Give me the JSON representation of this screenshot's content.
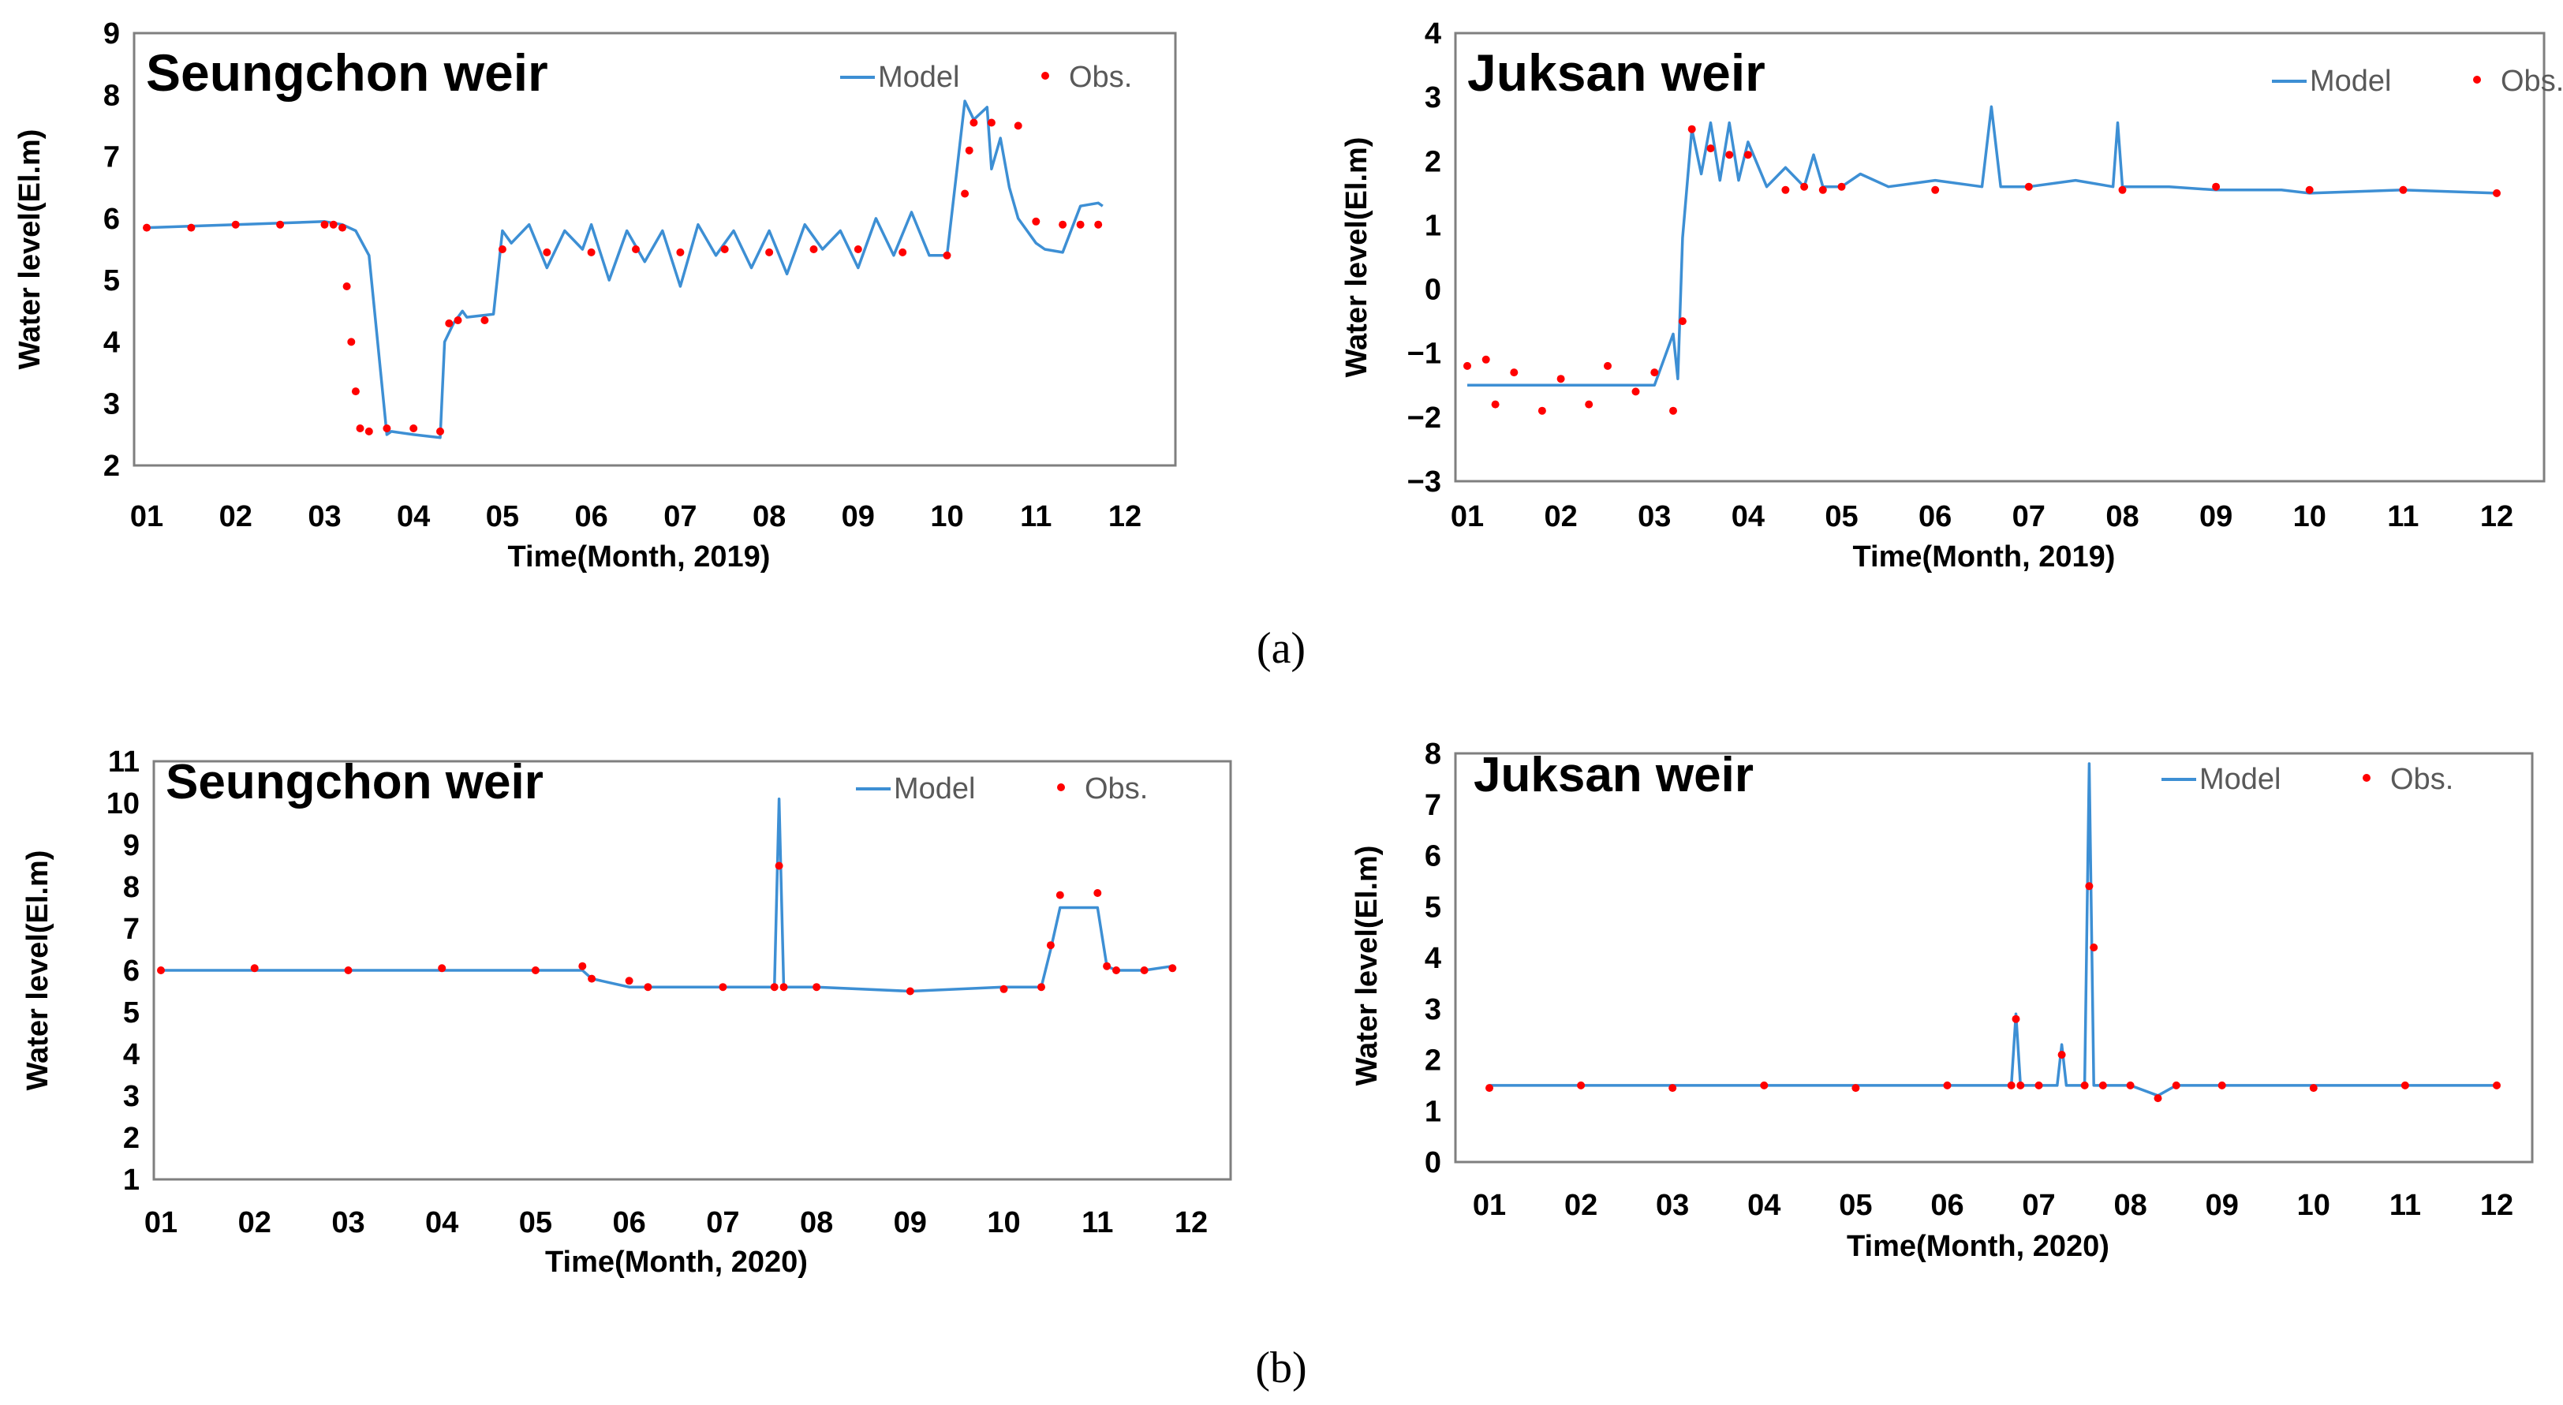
{
  "figure": {
    "caption_a": "(a)",
    "caption_b": "(b)"
  },
  "colors": {
    "model": "#3d8fd4",
    "obs": "#ff0000",
    "frame": "#7f7f7f"
  },
  "chart_data": [
    {
      "id": "a-left",
      "type": "line",
      "title": "Seungchon weir",
      "xlabel": "Time(Month, 2019)",
      "ylabel": "Water level(El.m)",
      "ylim": [
        2,
        9
      ],
      "yticks": [
        "2",
        "3",
        "4",
        "5",
        "6",
        "7",
        "8",
        "9"
      ],
      "xticks": [
        "01",
        "02",
        "03",
        "04",
        "05",
        "06",
        "07",
        "08",
        "09",
        "10",
        "11",
        "12"
      ],
      "legend": [
        "Model",
        "Obs."
      ],
      "series": [
        {
          "name": "Model",
          "x": [
            0.0,
            1.0,
            2.0,
            2.2,
            2.35,
            2.5,
            2.7,
            2.75,
            3.0,
            3.3,
            3.35,
            3.45,
            3.55,
            3.6,
            3.9,
            4.0,
            4.1,
            4.3,
            4.5,
            4.7,
            4.9,
            5.0,
            5.2,
            5.4,
            5.6,
            5.8,
            6.0,
            6.2,
            6.4,
            6.6,
            6.8,
            7.0,
            7.2,
            7.4,
            7.6,
            7.8,
            8.0,
            8.2,
            8.4,
            8.6,
            8.8,
            9.0,
            9.2,
            9.3,
            9.45,
            9.5,
            9.6,
            9.7,
            9.8,
            9.9,
            10.0,
            10.1,
            10.3,
            10.5,
            10.7,
            10.75
          ],
          "y": [
            5.85,
            5.9,
            5.95,
            5.9,
            5.8,
            5.4,
            2.5,
            2.55,
            2.5,
            2.45,
            4.0,
            4.3,
            4.5,
            4.4,
            4.45,
            5.8,
            5.6,
            5.9,
            5.2,
            5.8,
            5.5,
            5.9,
            5.0,
            5.8,
            5.3,
            5.8,
            4.9,
            5.9,
            5.4,
            5.8,
            5.2,
            5.8,
            5.1,
            5.9,
            5.5,
            5.8,
            5.2,
            6.0,
            5.4,
            6.1,
            5.4,
            5.4,
            7.9,
            7.6,
            7.8,
            6.8,
            7.3,
            6.5,
            6.0,
            5.8,
            5.6,
            5.5,
            5.45,
            6.2,
            6.25,
            6.2
          ]
        },
        {
          "name": "Obs.",
          "x": [
            0.0,
            0.5,
            1.0,
            1.5,
            2.0,
            2.1,
            2.2,
            2.25,
            2.3,
            2.35,
            2.4,
            2.5,
            2.7,
            3.0,
            3.3,
            3.4,
            3.5,
            3.8,
            4.0,
            4.5,
            5.0,
            5.5,
            6.0,
            6.5,
            7.0,
            7.5,
            8.0,
            8.5,
            9.0,
            9.2,
            9.25,
            9.3,
            9.5,
            9.8,
            10.0,
            10.3,
            10.5,
            10.7
          ],
          "y": [
            5.85,
            5.85,
            5.9,
            5.9,
            5.9,
            5.9,
            5.85,
            4.9,
            4.0,
            3.2,
            2.6,
            2.55,
            2.6,
            2.6,
            2.55,
            4.3,
            4.35,
            4.35,
            5.5,
            5.45,
            5.45,
            5.5,
            5.45,
            5.5,
            5.45,
            5.5,
            5.5,
            5.45,
            5.4,
            6.4,
            7.1,
            7.55,
            7.55,
            7.5,
            5.95,
            5.9,
            5.9,
            5.9
          ]
        }
      ]
    },
    {
      "id": "a-right",
      "type": "line",
      "title": "Juksan weir",
      "xlabel": "Time(Month, 2019)",
      "ylabel": "Water level(El.m)",
      "ylim": [
        -3,
        4
      ],
      "yticks": [
        "−3",
        "−2",
        "−1",
        "0",
        "1",
        "2",
        "3",
        "4"
      ],
      "xticks": [
        "01",
        "02",
        "03",
        "04",
        "05",
        "06",
        "07",
        "08",
        "09",
        "10",
        "11",
        "12"
      ],
      "legend": [
        "Model",
        "Obs."
      ],
      "series": [
        {
          "name": "Model",
          "x": [
            0.0,
            1.0,
            2.0,
            2.2,
            2.25,
            2.3,
            2.4,
            2.5,
            2.6,
            2.7,
            2.8,
            2.9,
            3.0,
            3.2,
            3.4,
            3.6,
            3.7,
            3.8,
            4.0,
            4.2,
            4.5,
            5.0,
            5.5,
            5.6,
            5.7,
            6.0,
            6.5,
            6.9,
            6.95,
            7.0,
            7.5,
            8.0,
            8.1,
            8.2,
            8.6,
            8.7,
            9.0,
            10.0,
            11.0
          ],
          "y": [
            -1.5,
            -1.5,
            -1.5,
            -0.7,
            -1.4,
            0.8,
            2.5,
            1.8,
            2.6,
            1.7,
            2.6,
            1.7,
            2.3,
            1.6,
            1.9,
            1.6,
            2.1,
            1.6,
            1.6,
            1.8,
            1.6,
            1.7,
            1.6,
            2.85,
            1.6,
            1.6,
            1.7,
            1.6,
            2.6,
            1.6,
            1.6,
            1.55,
            1.55,
            1.55,
            1.55,
            1.55,
            1.5,
            1.55,
            1.5
          ]
        },
        {
          "name": "Obs.",
          "x": [
            0.0,
            0.2,
            0.3,
            0.5,
            0.8,
            1.0,
            1.3,
            1.5,
            1.8,
            2.0,
            2.2,
            2.3,
            2.4,
            2.6,
            2.8,
            3.0,
            3.4,
            3.6,
            3.8,
            4.0,
            5.0,
            6.0,
            7.0,
            8.0,
            9.0,
            10.0,
            11.0
          ],
          "y": [
            -1.2,
            -1.1,
            -1.8,
            -1.3,
            -1.9,
            -1.4,
            -1.8,
            -1.2,
            -1.6,
            -1.3,
            -1.9,
            -0.5,
            2.5,
            2.2,
            2.1,
            2.1,
            1.55,
            1.6,
            1.55,
            1.6,
            1.55,
            1.6,
            1.55,
            1.6,
            1.55,
            1.55,
            1.5
          ]
        }
      ]
    },
    {
      "id": "b-left",
      "type": "line",
      "title": "Seungchon weir",
      "xlabel": "Time(Month, 2020)",
      "ylabel": "Water level(El.m)",
      "ylim": [
        1,
        11
      ],
      "yticks": [
        "1",
        "2",
        "3",
        "4",
        "5",
        "6",
        "7",
        "8",
        "9",
        "10",
        "11"
      ],
      "xticks": [
        "01",
        "02",
        "03",
        "04",
        "05",
        "06",
        "07",
        "08",
        "09",
        "10",
        "11",
        "12"
      ],
      "legend": [
        "Model",
        "Obs."
      ],
      "series": [
        {
          "name": "Model",
          "x": [
            0.0,
            1.0,
            2.0,
            3.0,
            4.0,
            4.5,
            4.6,
            4.8,
            5.0,
            5.2,
            6.0,
            6.55,
            6.6,
            6.65,
            7.0,
            8.0,
            9.0,
            9.4,
            9.5,
            9.6,
            10.0,
            10.1,
            10.2,
            10.5,
            10.8
          ],
          "y": [
            6.0,
            6.0,
            6.0,
            6.0,
            6.0,
            6.0,
            5.8,
            5.7,
            5.6,
            5.6,
            5.6,
            5.6,
            10.1,
            5.6,
            5.6,
            5.5,
            5.6,
            5.6,
            6.5,
            7.5,
            7.5,
            6.1,
            6.0,
            6.0,
            6.1
          ]
        },
        {
          "name": "Obs.",
          "x": [
            0.0,
            1.0,
            2.0,
            3.0,
            4.0,
            4.5,
            4.6,
            5.0,
            5.2,
            6.0,
            6.55,
            6.6,
            6.65,
            7.0,
            8.0,
            9.0,
            9.4,
            9.5,
            9.6,
            10.0,
            10.1,
            10.2,
            10.5,
            10.8
          ],
          "y": [
            6.0,
            6.05,
            6.0,
            6.05,
            6.0,
            6.1,
            5.8,
            5.75,
            5.6,
            5.6,
            5.6,
            8.5,
            5.6,
            5.6,
            5.5,
            5.55,
            5.6,
            6.6,
            7.8,
            7.85,
            6.1,
            6.0,
            6.0,
            6.05
          ]
        }
      ]
    },
    {
      "id": "b-right",
      "type": "line",
      "title": "Juksan weir",
      "xlabel": "Time(Month, 2020)",
      "ylabel": "Water level(El.m)",
      "ylim": [
        0,
        8
      ],
      "yticks": [
        "0",
        "1",
        "2",
        "3",
        "4",
        "5",
        "6",
        "7",
        "8"
      ],
      "xticks": [
        "01",
        "02",
        "03",
        "04",
        "05",
        "06",
        "07",
        "08",
        "09",
        "10",
        "11",
        "12"
      ],
      "legend": [
        "Model",
        "Obs."
      ],
      "series": [
        {
          "name": "Model",
          "x": [
            0.0,
            1.0,
            2.0,
            3.0,
            4.0,
            5.0,
            5.7,
            5.75,
            5.8,
            6.0,
            6.2,
            6.25,
            6.3,
            6.5,
            6.55,
            6.6,
            6.7,
            7.0,
            7.3,
            7.5,
            8.0,
            9.0,
            10.0,
            11.0
          ],
          "y": [
            1.5,
            1.5,
            1.5,
            1.5,
            1.5,
            1.5,
            1.5,
            2.9,
            1.5,
            1.5,
            1.5,
            2.3,
            1.5,
            1.5,
            7.8,
            1.5,
            1.5,
            1.5,
            1.3,
            1.5,
            1.5,
            1.5,
            1.5,
            1.5
          ]
        },
        {
          "name": "Obs.",
          "x": [
            0.0,
            1.0,
            2.0,
            3.0,
            4.0,
            5.0,
            5.7,
            5.75,
            5.8,
            6.0,
            6.25,
            6.5,
            6.55,
            6.6,
            6.7,
            7.0,
            7.3,
            7.5,
            8.0,
            9.0,
            10.0,
            11.0
          ],
          "y": [
            1.45,
            1.5,
            1.45,
            1.5,
            1.45,
            1.5,
            1.5,
            2.8,
            1.5,
            1.5,
            2.1,
            1.5,
            5.4,
            4.2,
            1.5,
            1.5,
            1.25,
            1.5,
            1.5,
            1.45,
            1.5,
            1.5
          ]
        }
      ]
    }
  ]
}
